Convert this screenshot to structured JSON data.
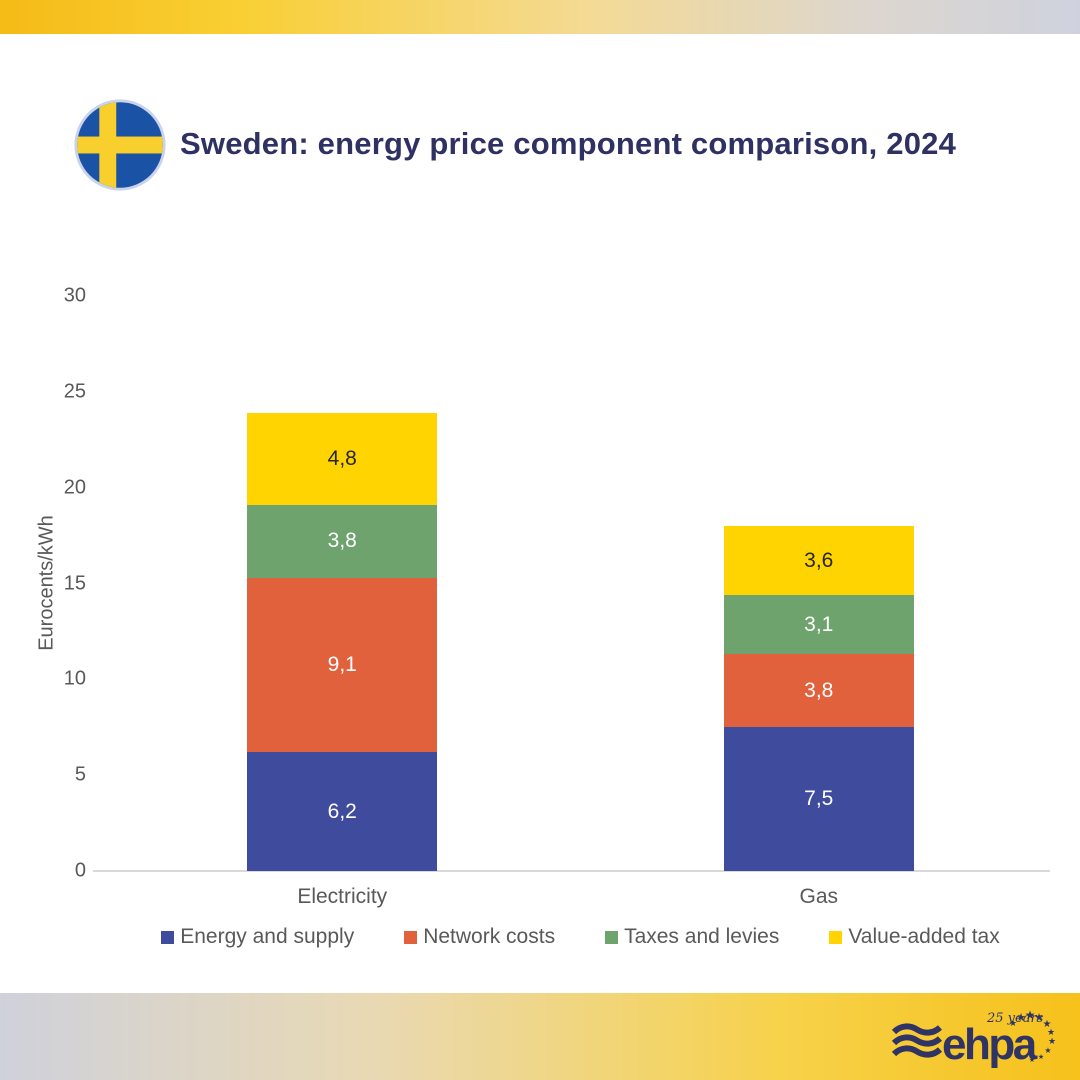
{
  "page": {
    "background": "#ffffff"
  },
  "top_bar": {
    "gradient": [
      "#F5BB17",
      "#F9CF33",
      "#F4DA96",
      "#CFD2DE"
    ]
  },
  "header": {
    "title": "Sweden: energy price component comparison, 2024",
    "title_color": "#2F3163",
    "flag": {
      "country": "Sweden",
      "field_blue": "#1A52A5",
      "cross_yellow": "#F9CF2D",
      "ring_color": "#C9D4EA"
    }
  },
  "chart_data": {
    "type": "bar",
    "stacked": true,
    "title": "Sweden: energy price component comparison, 2024",
    "categories": [
      "Electricity",
      "Gas"
    ],
    "series": [
      {
        "name": "Energy and supply",
        "color": "#3F4B9D",
        "values": [
          6.2,
          7.5
        ],
        "labels": [
          "6,2",
          "7,5"
        ],
        "label_color": "#ffffff"
      },
      {
        "name": "Network costs",
        "color": "#E2613D",
        "values": [
          9.1,
          3.8
        ],
        "labels": [
          "9,1",
          "3,8"
        ],
        "label_color": "#ffffff"
      },
      {
        "name": "Taxes and levies",
        "color": "#6EA36E",
        "values": [
          3.8,
          3.1
        ],
        "labels": [
          "3,8",
          "3,1"
        ],
        "label_color": "#ffffff"
      },
      {
        "name": "Value-added tax",
        "color": "#FFD400",
        "values": [
          4.8,
          3.6
        ],
        "labels": [
          "4,8",
          "3,6"
        ],
        "label_color": "#262626"
      }
    ],
    "totals": [
      23.9,
      18.0
    ],
    "xlabel": "",
    "ylabel": "Eurocents/kWh",
    "ylim": [
      0,
      30
    ],
    "yticks": [
      0,
      5,
      10,
      15,
      20,
      25,
      30
    ],
    "grid": false,
    "legend_position": "bottom",
    "axis_color": "#D9D9D9",
    "text_color": "#595959"
  },
  "footer": {
    "gradient": [
      "#CFD1DB",
      "#E9D9B3",
      "#F7D24B",
      "#F6C11B"
    ],
    "logo": {
      "text": "ehpa",
      "badge": "25 years",
      "color": "#2F3464"
    }
  }
}
